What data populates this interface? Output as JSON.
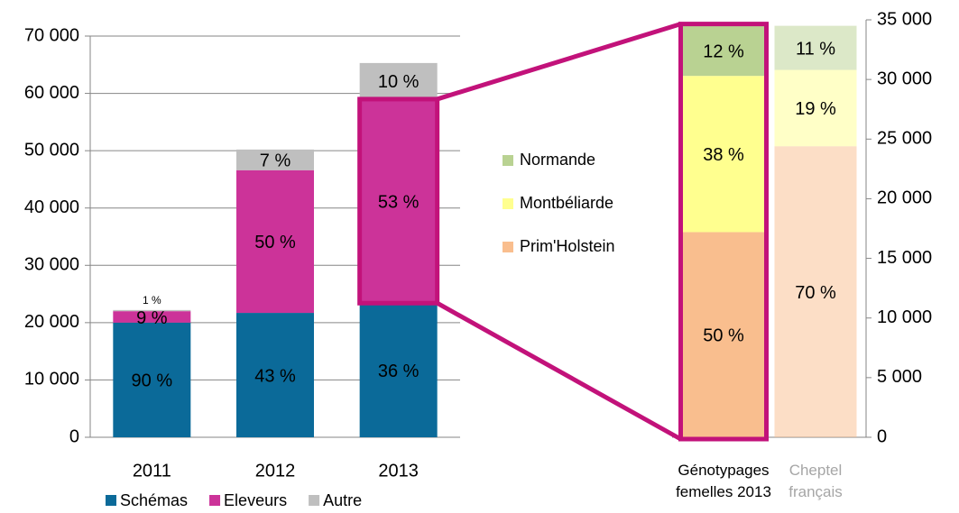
{
  "chart_data": [
    {
      "type": "bar",
      "stacked": true,
      "grid": true,
      "categories": [
        "2011",
        "2012",
        "2013"
      ],
      "ylim": [
        0,
        70000
      ],
      "yticks": [
        {
          "value": 0,
          "label": "0"
        },
        {
          "value": 10000,
          "label": "10 000"
        },
        {
          "value": 20000,
          "label": "20 000"
        },
        {
          "value": 30000,
          "label": "30 000"
        },
        {
          "value": 40000,
          "label": "40 000"
        },
        {
          "value": 50000,
          "label": "50 000"
        },
        {
          "value": 60000,
          "label": "60 000"
        },
        {
          "value": 70000,
          "label": "70 000"
        }
      ],
      "series": [
        {
          "name": "Schémas",
          "color": "#0b6a99",
          "values": [
            20000,
            21700,
            23400
          ],
          "value_labels": [
            "90 %",
            "43 %",
            "36 %"
          ]
        },
        {
          "name": "Eleveurs",
          "color": "#cc3399",
          "values": [
            2000,
            24900,
            35600
          ],
          "value_labels": [
            "9 %",
            "50 %",
            "53 %"
          ]
        },
        {
          "name": "Autre",
          "color": "#bfbfbf",
          "values": [
            200,
            3600,
            6300
          ],
          "value_labels": [
            "1 %",
            "7 %",
            "10 %"
          ]
        }
      ],
      "legend": "bottom"
    },
    {
      "type": "bar",
      "stacked": true,
      "y_axis_position": "right",
      "categories": [
        "Génotypages femelles 2013",
        "Cheptel français"
      ],
      "category_label_colors": [
        "#000000",
        "#a6a6a6"
      ],
      "category_opacity": [
        1,
        0.5
      ],
      "ylim": [
        0,
        35000
      ],
      "yticks": [
        {
          "value": 0,
          "label": "0"
        },
        {
          "value": 5000,
          "label": "5 000"
        },
        {
          "value": 10000,
          "label": "10 000"
        },
        {
          "value": 15000,
          "label": "15 000"
        },
        {
          "value": 20000,
          "label": "20 000"
        },
        {
          "value": 25000,
          "label": "25 000"
        },
        {
          "value": 30000,
          "label": "30 000"
        },
        {
          "value": 35000,
          "label": "35 000"
        }
      ],
      "series": [
        {
          "name": "Prim'Holstein",
          "color": "#f9be8e",
          "values": [
            17200,
            24400
          ],
          "value_labels": [
            "50 %",
            "70 %"
          ]
        },
        {
          "name": "Montbéliarde",
          "color": "#ffff8f",
          "values": [
            13100,
            6400
          ],
          "value_labels": [
            "38 %",
            "19 %"
          ]
        },
        {
          "name": "Normande",
          "color": "#b9d292",
          "values": [
            4200,
            3700
          ],
          "value_labels": [
            "12 %",
            "11 %"
          ]
        }
      ],
      "legend": "left"
    }
  ]
}
